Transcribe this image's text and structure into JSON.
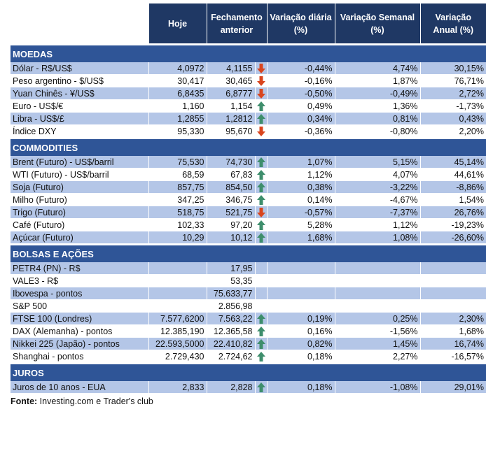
{
  "headers": [
    "Hoje",
    "Fechamento anterior",
    "Variação diária (%)",
    "Variação Semanal (%)",
    "Variação Anual (%)"
  ],
  "colors": {
    "header": "#1f3864",
    "section": "#2f5597",
    "alt_row": "#b4c6e7",
    "up": "#3e8e6c",
    "down": "#d9451e"
  },
  "sections": [
    {
      "title": "MOEDAS",
      "rows": [
        [
          "Dólar - R$/US$",
          "4,0972",
          "4,1155",
          "down",
          "-0,44%",
          "4,74%",
          "30,15%"
        ],
        [
          "Peso argentino - $/US$",
          "30,417",
          "30,465",
          "down",
          "-0,16%",
          "1,87%",
          "76,71%"
        ],
        [
          "Yuan Chinês - ¥/US$",
          "6,8435",
          "6,8777",
          "down",
          "-0,50%",
          "-0,49%",
          "2,72%"
        ],
        [
          "Euro - US$/€",
          "1,160",
          "1,154",
          "up",
          "0,49%",
          "1,36%",
          "-1,73%"
        ],
        [
          "Libra - US$/£",
          "1,2855",
          "1,2812",
          "up",
          "0,34%",
          "0,81%",
          "0,43%"
        ],
        [
          "Índice DXY",
          "95,330",
          "95,670",
          "down",
          "-0,36%",
          "-0,80%",
          "2,20%"
        ]
      ]
    },
    {
      "title": "COMMODITIES",
      "rows": [
        [
          "Brent (Futuro) - US$/barril",
          "75,530",
          "74,730",
          "up",
          "1,07%",
          "5,15%",
          "45,14%"
        ],
        [
          "WTI (Futuro) - US$/barril",
          "68,59",
          "67,83",
          "up",
          "1,12%",
          "4,07%",
          "44,61%"
        ],
        [
          "Soja (Futuro)",
          "857,75",
          "854,50",
          "up",
          "0,38%",
          "-3,22%",
          "-8,86%"
        ],
        [
          "Milho (Futuro)",
          "347,25",
          "346,75",
          "up",
          "0,14%",
          "-4,67%",
          "1,54%"
        ],
        [
          "Trigo (Futuro)",
          "518,75",
          "521,75",
          "down",
          "-0,57%",
          "-7,37%",
          "26,76%"
        ],
        [
          "Café (Futuro)",
          "102,33",
          "97,20",
          "up",
          "5,28%",
          "1,12%",
          "-19,23%"
        ],
        [
          "Açúcar (Futuro)",
          "10,29",
          "10,12",
          "up",
          "1,68%",
          "1,08%",
          "-26,60%"
        ]
      ]
    },
    {
      "title": "BOLSAS E AÇÕES",
      "rows": [
        [
          "PETR4 (PN) - R$",
          "",
          "17,95",
          "",
          "",
          "",
          ""
        ],
        [
          "VALE3 - R$",
          "",
          "53,35",
          "",
          "",
          "",
          ""
        ],
        [
          "Ibovespa - pontos",
          "",
          "75.633,77",
          "",
          "",
          "",
          ""
        ],
        [
          "S&P 500",
          "",
          "2.856,98",
          "",
          "",
          "",
          ""
        ],
        [
          "FTSE 100 (Londres)",
          "7.577,6200",
          "7.563,22",
          "up",
          "0,19%",
          "0,25%",
          "2,30%"
        ],
        [
          "DAX (Alemanha) - pontos",
          "12.385,190",
          "12.365,58",
          "up",
          "0,16%",
          "-1,56%",
          "1,68%"
        ],
        [
          "Nikkei 225 (Japão) - pontos",
          "22.593,5000",
          "22.410,82",
          "up",
          "0,82%",
          "1,45%",
          "16,74%"
        ],
        [
          "Shanghai - pontos",
          "2.729,430",
          "2.724,62",
          "up",
          "0,18%",
          "2,27%",
          "-16,57%"
        ]
      ]
    },
    {
      "title": "JUROS",
      "rows": [
        [
          "Juros de 10 anos - EUA",
          "2,833",
          "2,828",
          "up",
          "0,18%",
          "-1,08%",
          "29,01%"
        ]
      ]
    }
  ],
  "source": {
    "label": "Fonte:",
    "text": " Investing.com e Trader's club"
  }
}
